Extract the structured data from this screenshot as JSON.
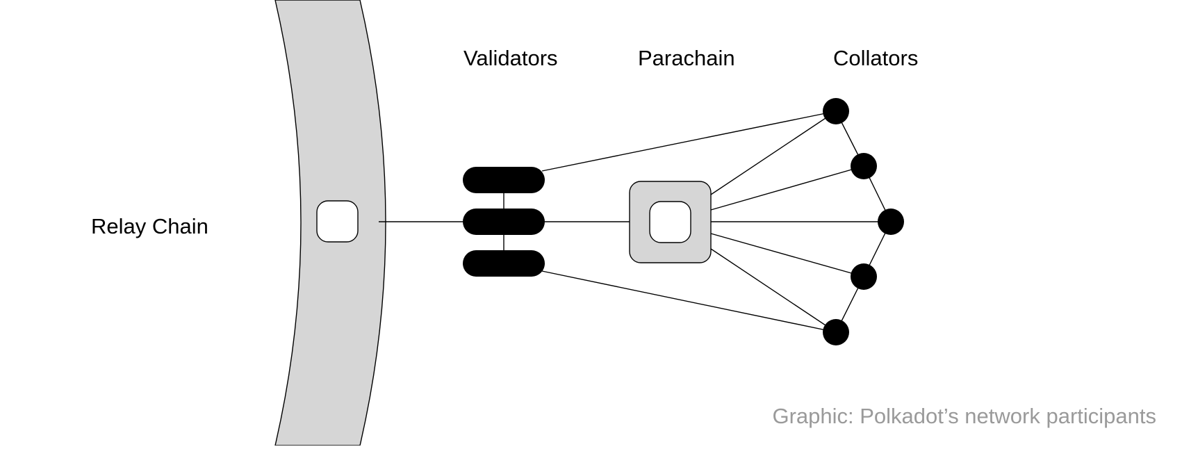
{
  "labels": {
    "relay_chain": "Relay Chain",
    "validators": "Validators",
    "parachain": "Parachain",
    "collators": "Collators"
  },
  "caption": "Graphic: Polkadot’s network participants",
  "colors": {
    "relay_band_fill": "#d6d6d6",
    "parachain_fill": "#d6d6d6",
    "node_fill": "#000000",
    "line": "#000000",
    "caption": "#9a9a9a"
  },
  "icons": {
    "relay_slot": "rounded-square-icon",
    "parachain_node": "rounded-square-icon",
    "validator": "pill-icon",
    "collator": "circle-node-icon"
  }
}
